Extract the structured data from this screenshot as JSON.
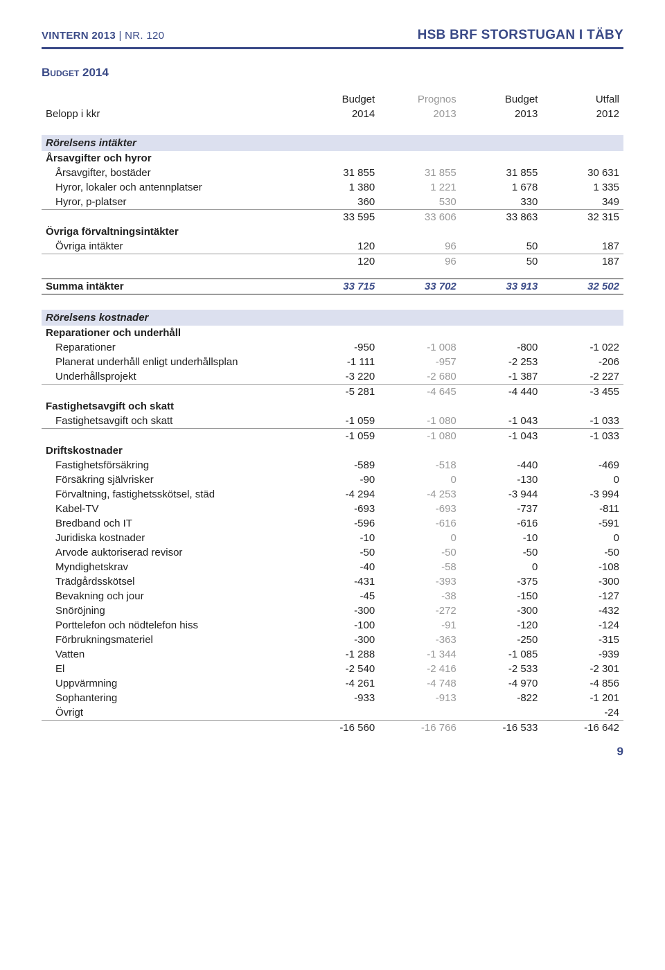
{
  "header": {
    "left_prefix": "VINTERN 2013",
    "left_divider": "|",
    "left_suffix": "NR. 120",
    "right": "HSB BRF STORSTUGAN I TÄBY"
  },
  "section_title": "Budget 2014",
  "table": {
    "col_headers": [
      "Budget",
      "Prognos",
      "Budget",
      "Utfall"
    ],
    "col_years": [
      "2014",
      "2013",
      "2013",
      "2012"
    ],
    "belopp": "Belopp i kkr",
    "blocks": [
      {
        "title": "Rörelsens intäkter",
        "groups": [
          {
            "name": "Årsavgifter och hyror",
            "rows": [
              {
                "label": "Årsavgifter, bostäder",
                "v": [
                  "31 855",
                  "31 855",
                  "31 855",
                  "30 631"
                ]
              },
              {
                "label": "Hyror, lokaler och antennplatser",
                "v": [
                  "1 380",
                  "1 221",
                  "1 678",
                  "1 335"
                ]
              },
              {
                "label": "Hyror, p-platser",
                "v": [
                  "360",
                  "530",
                  "330",
                  "349"
                ]
              }
            ],
            "subtotal": [
              "33 595",
              "33 606",
              "33 863",
              "32 315"
            ]
          },
          {
            "name": "Övriga förvaltningsintäkter",
            "rows": [
              {
                "label": "Övriga intäkter",
                "v": [
                  "120",
                  "96",
                  "50",
                  "187"
                ]
              }
            ],
            "subtotal": [
              "120",
              "96",
              "50",
              "187"
            ]
          }
        ],
        "total_label": "Summa intäkter",
        "total": [
          "33 715",
          "33 702",
          "33 913",
          "32 502"
        ]
      },
      {
        "title": "Rörelsens kostnader",
        "groups": [
          {
            "name": "Reparationer och underhåll",
            "rows": [
              {
                "label": "Reparationer",
                "v": [
                  "-950",
                  "-1 008",
                  "-800",
                  "-1 022"
                ]
              },
              {
                "label": "Planerat underhåll enligt underhållsplan",
                "v": [
                  "-1 111",
                  "-957",
                  "-2 253",
                  "-206"
                ]
              },
              {
                "label": "Underhållsprojekt",
                "v": [
                  "-3 220",
                  "-2 680",
                  "-1 387",
                  "-2 227"
                ]
              }
            ],
            "subtotal": [
              "-5 281",
              "-4 645",
              "-4 440",
              "-3 455"
            ]
          },
          {
            "name": "Fastighetsavgift och skatt",
            "rows": [
              {
                "label": "Fastighetsavgift och skatt",
                "v": [
                  "-1 059",
                  "-1 080",
                  "-1 043",
                  "-1 033"
                ]
              }
            ],
            "subtotal": [
              "-1 059",
              "-1 080",
              "-1 043",
              "-1 033"
            ]
          },
          {
            "name": "Driftskostnader",
            "rows": [
              {
                "label": "Fastighetsförsäkring",
                "v": [
                  "-589",
                  "-518",
                  "-440",
                  "-469"
                ]
              },
              {
                "label": "Försäkring självrisker",
                "v": [
                  "-90",
                  "0",
                  "-130",
                  "0"
                ]
              },
              {
                "label": "Förvaltning, fastighetsskötsel, städ",
                "v": [
                  "-4 294",
                  "-4 253",
                  "-3 944",
                  "-3 994"
                ]
              },
              {
                "label": "Kabel-TV",
                "v": [
                  "-693",
                  "-693",
                  "-737",
                  "-811"
                ]
              },
              {
                "label": "Bredband och IT",
                "v": [
                  "-596",
                  "-616",
                  "-616",
                  "-591"
                ]
              },
              {
                "label": "Juridiska kostnader",
                "v": [
                  "-10",
                  "0",
                  "-10",
                  "0"
                ]
              },
              {
                "label": "Arvode auktoriserad revisor",
                "v": [
                  "-50",
                  "-50",
                  "-50",
                  "-50"
                ]
              },
              {
                "label": "Myndighetskrav",
                "v": [
                  "-40",
                  "-58",
                  "0",
                  "-108"
                ]
              },
              {
                "label": "Trädgårdsskötsel",
                "v": [
                  "-431",
                  "-393",
                  "-375",
                  "-300"
                ]
              },
              {
                "label": "Bevakning och jour",
                "v": [
                  "-45",
                  "-38",
                  "-150",
                  "-127"
                ]
              },
              {
                "label": "Snöröjning",
                "v": [
                  "-300",
                  "-272",
                  "-300",
                  "-432"
                ]
              },
              {
                "label": "Porttelefon och nödtelefon hiss",
                "v": [
                  "-100",
                  "-91",
                  "-120",
                  "-124"
                ]
              },
              {
                "label": "Förbrukningsmateriel",
                "v": [
                  "-300",
                  "-363",
                  "-250",
                  "-315"
                ]
              },
              {
                "label": "Vatten",
                "v": [
                  "-1 288",
                  "-1 344",
                  "-1 085",
                  "-939"
                ]
              },
              {
                "label": "El",
                "v": [
                  "-2 540",
                  "-2 416",
                  "-2 533",
                  "-2 301"
                ]
              },
              {
                "label": "Uppvärmning",
                "v": [
                  "-4 261",
                  "-4 748",
                  "-4 970",
                  "-4 856"
                ]
              },
              {
                "label": "Sophantering",
                "v": [
                  "-933",
                  "-913",
                  "-822",
                  "-1 201"
                ]
              },
              {
                "label": "Övrigt",
                "v": [
                  "",
                  "",
                  "",
                  "-24"
                ]
              }
            ],
            "subtotal": [
              "-16 560",
              "-16 766",
              "-16 533",
              "-16 642"
            ]
          }
        ]
      }
    ]
  },
  "page_number": "9"
}
